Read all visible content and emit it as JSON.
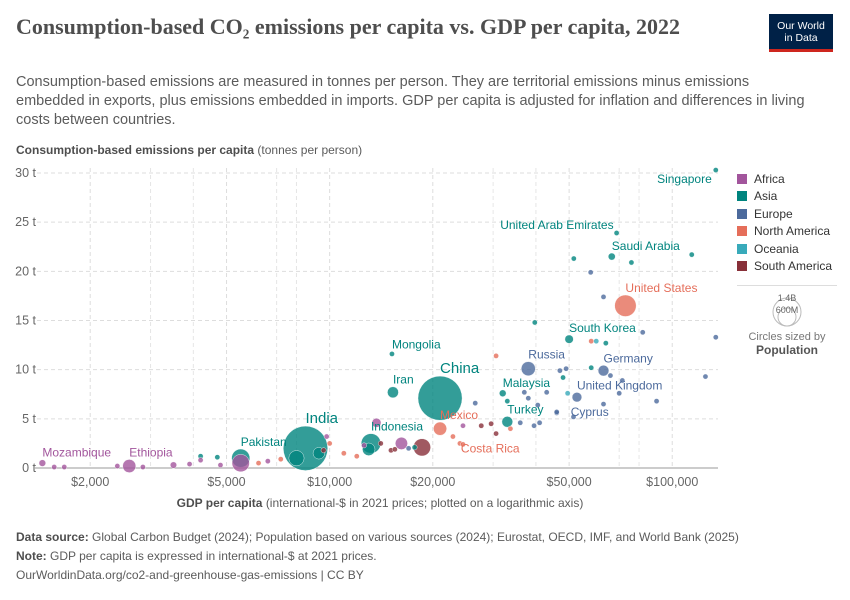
{
  "header": {
    "title": "Consumption-based CO₂ emissions per capita vs. GDP per capita, 2022",
    "subtitle": "Consumption-based emissions are measured in tonnes per person. They are territorial emissions minus emissions embedded in exports, plus emissions embedded in imports. GDP per capita is adjusted for inflation and differences in living costs between countries.",
    "logo_line1": "Our World",
    "logo_line2": "in Data"
  },
  "chart_data": {
    "type": "scatter",
    "ylabel_bold": "Consumption-based emissions per capita",
    "ylabel_unit": "(tonnes per person)",
    "xlabel_bold": "GDP per capita",
    "xlabel_unit": "(international-$ in 2021 prices; plotted on a logarithmic axis)",
    "x_scale": "log",
    "xlim": [
      1380,
      136000
    ],
    "ylim": [
      0,
      30
    ],
    "x_ticks": [
      {
        "v": 2000,
        "label": "$2,000"
      },
      {
        "v": 5000,
        "label": "$5,000"
      },
      {
        "v": 10000,
        "label": "$10,000"
      },
      {
        "v": 20000,
        "label": "$20,000"
      },
      {
        "v": 50000,
        "label": "$50,000"
      },
      {
        "v": 100000,
        "label": "$100,000"
      }
    ],
    "y_ticks": [
      {
        "v": 0,
        "label": "0 t"
      },
      {
        "v": 5,
        "label": "5 t"
      },
      {
        "v": 10,
        "label": "10 t"
      },
      {
        "v": 15,
        "label": "15 t"
      },
      {
        "v": 20,
        "label": "20 t"
      },
      {
        "v": 25,
        "label": "25 t"
      },
      {
        "v": 30,
        "label": "30 t"
      }
    ],
    "grid": true,
    "legend_position": "right",
    "regions": [
      {
        "name": "Africa",
        "color": "#a2559c"
      },
      {
        "name": "Asia",
        "color": "#00847e"
      },
      {
        "name": "Europe",
        "color": "#4c6a9c"
      },
      {
        "name": "North America",
        "color": "#e56e5a"
      },
      {
        "name": "Oceania",
        "color": "#38aaba"
      },
      {
        "name": "South America",
        "color": "#883039"
      }
    ],
    "size_legend": {
      "values": [
        "1.4B",
        "600M"
      ],
      "caption": "Circles sized by",
      "variable": "Population"
    },
    "points": [
      {
        "label": "China",
        "region": "Asia",
        "gdp": 21000,
        "co2": 7.1,
        "pop": 1410
      },
      {
        "label": "India",
        "region": "Asia",
        "gdp": 8500,
        "co2": 2.0,
        "pop": 1430
      },
      {
        "label": "United States",
        "region": "North America",
        "gdp": 73000,
        "co2": 16.5,
        "pop": 335
      },
      {
        "label": "Indonesia",
        "region": "Asia",
        "gdp": 13200,
        "co2": 2.5,
        "pop": 277
      },
      {
        "label": "Pakistan",
        "region": "Asia",
        "gdp": 5500,
        "co2": 1.0,
        "pop": 240
      },
      {
        "label": "",
        "region": "Africa",
        "gdp": 5500,
        "co2": 0.5,
        "pop": 220
      },
      {
        "label": "",
        "region": "South America",
        "gdp": 18600,
        "co2": 2.1,
        "pop": 216
      },
      {
        "label": "",
        "region": "Asia",
        "gdp": 8000,
        "co2": 1.0,
        "pop": 170
      },
      {
        "label": "Russia",
        "region": "Europe",
        "gdp": 38000,
        "co2": 10.1,
        "pop": 145
      },
      {
        "label": "Mexico",
        "region": "North America",
        "gdp": 21000,
        "co2": 4.0,
        "pop": 128
      },
      {
        "label": "Ethiopia",
        "region": "Africa",
        "gdp": 2600,
        "co2": 0.2,
        "pop": 126
      },
      {
        "label": "",
        "region": "Africa",
        "gdp": 16200,
        "co2": 2.5,
        "pop": 110
      },
      {
        "label": "",
        "region": "Asia",
        "gdp": 13000,
        "co2": 1.9,
        "pop": 115
      },
      {
        "label": "",
        "region": "Asia",
        "gdp": 9300,
        "co2": 1.5,
        "pop": 98
      },
      {
        "label": "Iran",
        "region": "Asia",
        "gdp": 15300,
        "co2": 7.7,
        "pop": 89
      },
      {
        "label": "Turkey",
        "region": "Asia",
        "gdp": 33000,
        "co2": 4.7,
        "pop": 85
      },
      {
        "label": "Germany",
        "region": "Europe",
        "gdp": 63000,
        "co2": 9.9,
        "pop": 84
      },
      {
        "label": "United Kingdom",
        "region": "Europe",
        "gdp": 52700,
        "co2": 7.2,
        "pop": 68
      },
      {
        "label": "",
        "region": "Africa",
        "gdp": 13700,
        "co2": 4.6,
        "pop": 60
      },
      {
        "label": "South Korea",
        "region": "Asia",
        "gdp": 50000,
        "co2": 13.1,
        "pop": 52
      },
      {
        "label": "Saudi Arabia",
        "region": "Asia",
        "gdp": 66600,
        "co2": 21.5,
        "pop": 36
      },
      {
        "label": "Malaysia",
        "region": "Asia",
        "gdp": 32000,
        "co2": 7.6,
        "pop": 34
      },
      {
        "label": "Mozambique",
        "region": "Africa",
        "gdp": 1450,
        "co2": 0.5,
        "pop": 33
      },
      {
        "label": "",
        "region": "Africa",
        "gdp": 3500,
        "co2": 0.3,
        "pop": 30
      },
      {
        "label": "",
        "region": "South America",
        "gdp": 27700,
        "co2": 4.3,
        "pop": 20
      },
      {
        "label": "",
        "region": "Europe",
        "gdp": 46000,
        "co2": 5.6,
        "pop": 10
      },
      {
        "label": "United Arab Emirates",
        "region": "Asia",
        "gdp": 68800,
        "co2": 23.9,
        "pop": 10
      },
      {
        "label": "Singapore",
        "region": "Asia",
        "gdp": 134000,
        "co2": 30.3,
        "pop": 6
      },
      {
        "label": "Costa Rica",
        "region": "North America",
        "gdp": 24000,
        "co2": 2.5,
        "pop": 5
      },
      {
        "label": "Mongolia",
        "region": "Asia",
        "gdp": 15200,
        "co2": 11.6,
        "pop": 3.4
      },
      {
        "label": "Cyprus",
        "region": "Europe",
        "gdp": 46000,
        "co2": 5.7,
        "pop": 1.2
      },
      {
        "label": "",
        "region": "Asia",
        "gdp": 51600,
        "co2": 21.3,
        "pop": 4
      },
      {
        "label": "",
        "region": "Europe",
        "gdp": 57800,
        "co2": 19.9,
        "pop": 1
      },
      {
        "label": "",
        "region": "Asia",
        "gdp": 76000,
        "co2": 20.9,
        "pop": 3
      },
      {
        "label": "",
        "region": "Asia",
        "gdp": 114000,
        "co2": 21.7,
        "pop": 3
      },
      {
        "label": "",
        "region": "Europe",
        "gdp": 63000,
        "co2": 17.4,
        "pop": 1
      },
      {
        "label": "",
        "region": "Europe",
        "gdp": 82000,
        "co2": 13.8,
        "pop": 1
      },
      {
        "label": "",
        "region": "Europe",
        "gdp": 134000,
        "co2": 13.3,
        "pop": 1
      },
      {
        "label": "",
        "region": "Asia",
        "gdp": 39700,
        "co2": 14.8,
        "pop": 2
      },
      {
        "label": "",
        "region": "North America",
        "gdp": 58000,
        "co2": 12.9,
        "pop": 5
      },
      {
        "label": "",
        "region": "Oceania",
        "gdp": 60000,
        "co2": 12.9,
        "pop": 5
      },
      {
        "label": "",
        "region": "Asia",
        "gdp": 64000,
        "co2": 12.7,
        "pop": 3
      },
      {
        "label": "",
        "region": "North America",
        "gdp": 30600,
        "co2": 11.4,
        "pop": 1
      },
      {
        "label": "",
        "region": "Europe",
        "gdp": 47000,
        "co2": 9.9,
        "pop": 2
      },
      {
        "label": "",
        "region": "Europe",
        "gdp": 49000,
        "co2": 10.1,
        "pop": 2
      },
      {
        "label": "",
        "region": "Asia",
        "gdp": 48000,
        "co2": 9.2,
        "pop": 2
      },
      {
        "label": "",
        "region": "Asia",
        "gdp": 58000,
        "co2": 10.2,
        "pop": 2
      },
      {
        "label": "",
        "region": "Europe",
        "gdp": 66000,
        "co2": 9.4,
        "pop": 2
      },
      {
        "label": "",
        "region": "Europe",
        "gdp": 71500,
        "co2": 8.9,
        "pop": 2
      },
      {
        "label": "",
        "region": "Europe",
        "gdp": 125000,
        "co2": 9.3,
        "pop": 1
      },
      {
        "label": "",
        "region": "Europe",
        "gdp": 90000,
        "co2": 6.8,
        "pop": 1
      },
      {
        "label": "",
        "region": "Europe",
        "gdp": 70000,
        "co2": 7.6,
        "pop": 1
      },
      {
        "label": "",
        "region": "Oceania",
        "gdp": 49500,
        "co2": 7.6,
        "pop": 1
      },
      {
        "label": "",
        "region": "Europe",
        "gdp": 43000,
        "co2": 7.7,
        "pop": 2
      },
      {
        "label": "",
        "region": "Europe",
        "gdp": 38000,
        "co2": 7.1,
        "pop": 1
      },
      {
        "label": "",
        "region": "Europe",
        "gdp": 37000,
        "co2": 7.7,
        "pop": 1
      },
      {
        "label": "",
        "region": "Asia",
        "gdp": 33000,
        "co2": 6.8,
        "pop": 1
      },
      {
        "label": "",
        "region": "Europe",
        "gdp": 26600,
        "co2": 6.6,
        "pop": 1
      },
      {
        "label": "",
        "region": "Europe",
        "gdp": 40500,
        "co2": 6.4,
        "pop": 1
      },
      {
        "label": "",
        "region": "Europe",
        "gdp": 63000,
        "co2": 6.5,
        "pop": 1
      },
      {
        "label": "",
        "region": "Europe",
        "gdp": 51500,
        "co2": 5.2,
        "pop": 2
      },
      {
        "label": "",
        "region": "Europe",
        "gdp": 36000,
        "co2": 4.6,
        "pop": 1
      },
      {
        "label": "",
        "region": "Europe",
        "gdp": 39500,
        "co2": 4.3,
        "pop": 2
      },
      {
        "label": "",
        "region": "Europe",
        "gdp": 41000,
        "co2": 4.6,
        "pop": 1
      },
      {
        "label": "",
        "region": "North America",
        "gdp": 33700,
        "co2": 4.0,
        "pop": 1
      },
      {
        "label": "",
        "region": "South America",
        "gdp": 29600,
        "co2": 4.5,
        "pop": 2
      },
      {
        "label": "",
        "region": "Africa",
        "gdp": 24500,
        "co2": 4.3,
        "pop": 1
      },
      {
        "label": "",
        "region": "South America",
        "gdp": 30600,
        "co2": 3.5,
        "pop": 1
      },
      {
        "label": "",
        "region": "North America",
        "gdp": 22900,
        "co2": 3.2,
        "pop": 1
      },
      {
        "label": "",
        "region": "North America",
        "gdp": 24500,
        "co2": 2.4,
        "pop": 1
      },
      {
        "label": "",
        "region": "Africa",
        "gdp": 1570,
        "co2": 0.1,
        "pop": 2
      },
      {
        "label": "",
        "region": "Africa",
        "gdp": 1680,
        "co2": 0.1,
        "pop": 2
      },
      {
        "label": "",
        "region": "Africa",
        "gdp": 2400,
        "co2": 0.2,
        "pop": 2
      },
      {
        "label": "",
        "region": "Africa",
        "gdp": 2850,
        "co2": 0.1,
        "pop": 2
      },
      {
        "label": "",
        "region": "Africa",
        "gdp": 3900,
        "co2": 0.4,
        "pop": 2
      },
      {
        "label": "",
        "region": "Asia",
        "gdp": 4200,
        "co2": 1.2,
        "pop": 1
      },
      {
        "label": "",
        "region": "Africa",
        "gdp": 4200,
        "co2": 0.8,
        "pop": 2
      },
      {
        "label": "",
        "region": "Asia",
        "gdp": 4700,
        "co2": 1.1,
        "pop": 2
      },
      {
        "label": "",
        "region": "Africa",
        "gdp": 4800,
        "co2": 0.3,
        "pop": 3
      },
      {
        "label": "",
        "region": "North America",
        "gdp": 6200,
        "co2": 0.5,
        "pop": 2
      },
      {
        "label": "",
        "region": "Africa",
        "gdp": 6600,
        "co2": 0.7,
        "pop": 4
      },
      {
        "label": "",
        "region": "North America",
        "gdp": 7200,
        "co2": 0.9,
        "pop": 2
      },
      {
        "label": "",
        "region": "Africa",
        "gdp": 9800,
        "co2": 3.2,
        "pop": 2
      },
      {
        "label": "",
        "region": "North America",
        "gdp": 10000,
        "co2": 2.5,
        "pop": 2
      },
      {
        "label": "",
        "region": "South America",
        "gdp": 9600,
        "co2": 1.8,
        "pop": 2
      },
      {
        "label": "",
        "region": "North America",
        "gdp": 11000,
        "co2": 1.5,
        "pop": 1
      },
      {
        "label": "",
        "region": "North America",
        "gdp": 12000,
        "co2": 1.2,
        "pop": 1
      },
      {
        "label": "",
        "region": "Africa",
        "gdp": 12600,
        "co2": 2.3,
        "pop": 2
      },
      {
        "label": "",
        "region": "South America",
        "gdp": 14100,
        "co2": 2.5,
        "pop": 2
      },
      {
        "label": "",
        "region": "South America",
        "gdp": 15100,
        "co2": 1.8,
        "pop": 4
      },
      {
        "label": "",
        "region": "South America",
        "gdp": 15500,
        "co2": 1.9,
        "pop": 4
      },
      {
        "label": "",
        "region": "Europe",
        "gdp": 17000,
        "co2": 2.0,
        "pop": 2
      },
      {
        "label": "",
        "region": "Asia",
        "gdp": 17700,
        "co2": 2.1,
        "pop": 2
      }
    ]
  },
  "footer": {
    "source_label": "Data source:",
    "source_text": "Global Carbon Budget (2024); Population based on various sources (2024); Eurostat, OECD, IMF, and World Bank (2025)",
    "note_label": "Note:",
    "note_text": "GDP per capita is expressed in international-$ at 2021 prices.",
    "url": "OurWorldinData.org/co2-and-greenhouse-gas-emissions | CC BY"
  }
}
